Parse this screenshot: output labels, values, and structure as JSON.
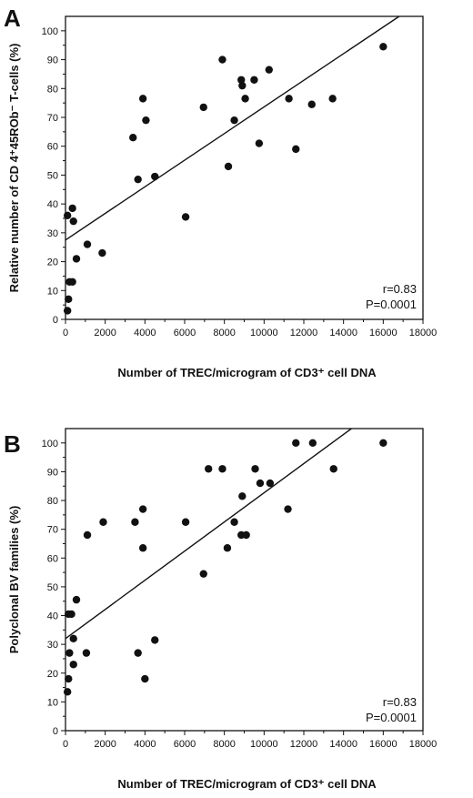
{
  "chart_data": [
    {
      "panel": "A",
      "type": "scatter",
      "xlabel": "Number of TREC/microgram of CD3⁺ cell DNA",
      "ylabel": "Relative number of CD 4⁺45ROb⁻ T-cells (%)",
      "xlim": [
        0,
        18000
      ],
      "ylim": [
        0,
        105
      ],
      "xticks": [
        0,
        2000,
        4000,
        6000,
        8000,
        10000,
        12000,
        14000,
        16000,
        18000
      ],
      "yticks": [
        0,
        10,
        20,
        30,
        40,
        50,
        60,
        70,
        80,
        90,
        100
      ],
      "grid": false,
      "stats": {
        "r": "r=0.83",
        "p": "P=0.0001"
      },
      "regression": {
        "x": [
          0,
          16800
        ],
        "y": [
          27.5,
          105
        ]
      },
      "points": [
        [
          100,
          3
        ],
        [
          150,
          7
        ],
        [
          200,
          13
        ],
        [
          350,
          13
        ],
        [
          400,
          34
        ],
        [
          350,
          38.5
        ],
        [
          550,
          21
        ],
        [
          100,
          36
        ],
        [
          1100,
          26
        ],
        [
          1850,
          23
        ],
        [
          3400,
          63
        ],
        [
          3650,
          48.5
        ],
        [
          3900,
          76.5
        ],
        [
          4050,
          69
        ],
        [
          4500,
          49.5
        ],
        [
          6050,
          35.5
        ],
        [
          6950,
          73.5
        ],
        [
          7900,
          90
        ],
        [
          8200,
          53
        ],
        [
          8500,
          69
        ],
        [
          8850,
          83
        ],
        [
          8900,
          81
        ],
        [
          9050,
          76.5
        ],
        [
          9500,
          83
        ],
        [
          9750,
          61
        ],
        [
          10250,
          86.5
        ],
        [
          11250,
          76.5
        ],
        [
          11600,
          59
        ],
        [
          12400,
          74.5
        ],
        [
          13450,
          76.5
        ],
        [
          16000,
          94.5
        ]
      ]
    },
    {
      "panel": "B",
      "type": "scatter",
      "xlabel": "Number of TREC/microgram of CD3⁺ cell DNA",
      "ylabel": "Polyclonal BV families (%)",
      "xlim": [
        0,
        18000
      ],
      "ylim": [
        0,
        105
      ],
      "xticks": [
        0,
        2000,
        4000,
        6000,
        8000,
        10000,
        12000,
        14000,
        16000,
        18000
      ],
      "yticks": [
        0,
        10,
        20,
        30,
        40,
        50,
        60,
        70,
        80,
        90,
        100
      ],
      "grid": false,
      "stats": {
        "r": "r=0.83",
        "p": "P=0.0001"
      },
      "regression": {
        "x": [
          0,
          14400
        ],
        "y": [
          32,
          105
        ]
      },
      "points": [
        [
          100,
          13.5
        ],
        [
          150,
          18
        ],
        [
          200,
          27
        ],
        [
          150,
          40.5
        ],
        [
          300,
          40.5
        ],
        [
          400,
          23
        ],
        [
          400,
          32
        ],
        [
          550,
          45.5
        ],
        [
          1050,
          27
        ],
        [
          1100,
          68
        ],
        [
          1900,
          72.5
        ],
        [
          3500,
          72.5
        ],
        [
          3650,
          27
        ],
        [
          3900,
          77
        ],
        [
          3900,
          63.5
        ],
        [
          4000,
          18
        ],
        [
          4500,
          31.5
        ],
        [
          6050,
          72.5
        ],
        [
          6950,
          54.5
        ],
        [
          7200,
          91
        ],
        [
          7900,
          91
        ],
        [
          8150,
          63.5
        ],
        [
          8500,
          72.5
        ],
        [
          8850,
          68
        ],
        [
          8900,
          81.5
        ],
        [
          9100,
          68
        ],
        [
          9550,
          91
        ],
        [
          9800,
          86
        ],
        [
          10300,
          86
        ],
        [
          11200,
          77
        ],
        [
          11600,
          100
        ],
        [
          12450,
          100
        ],
        [
          13500,
          91
        ],
        [
          16000,
          100
        ]
      ]
    }
  ]
}
